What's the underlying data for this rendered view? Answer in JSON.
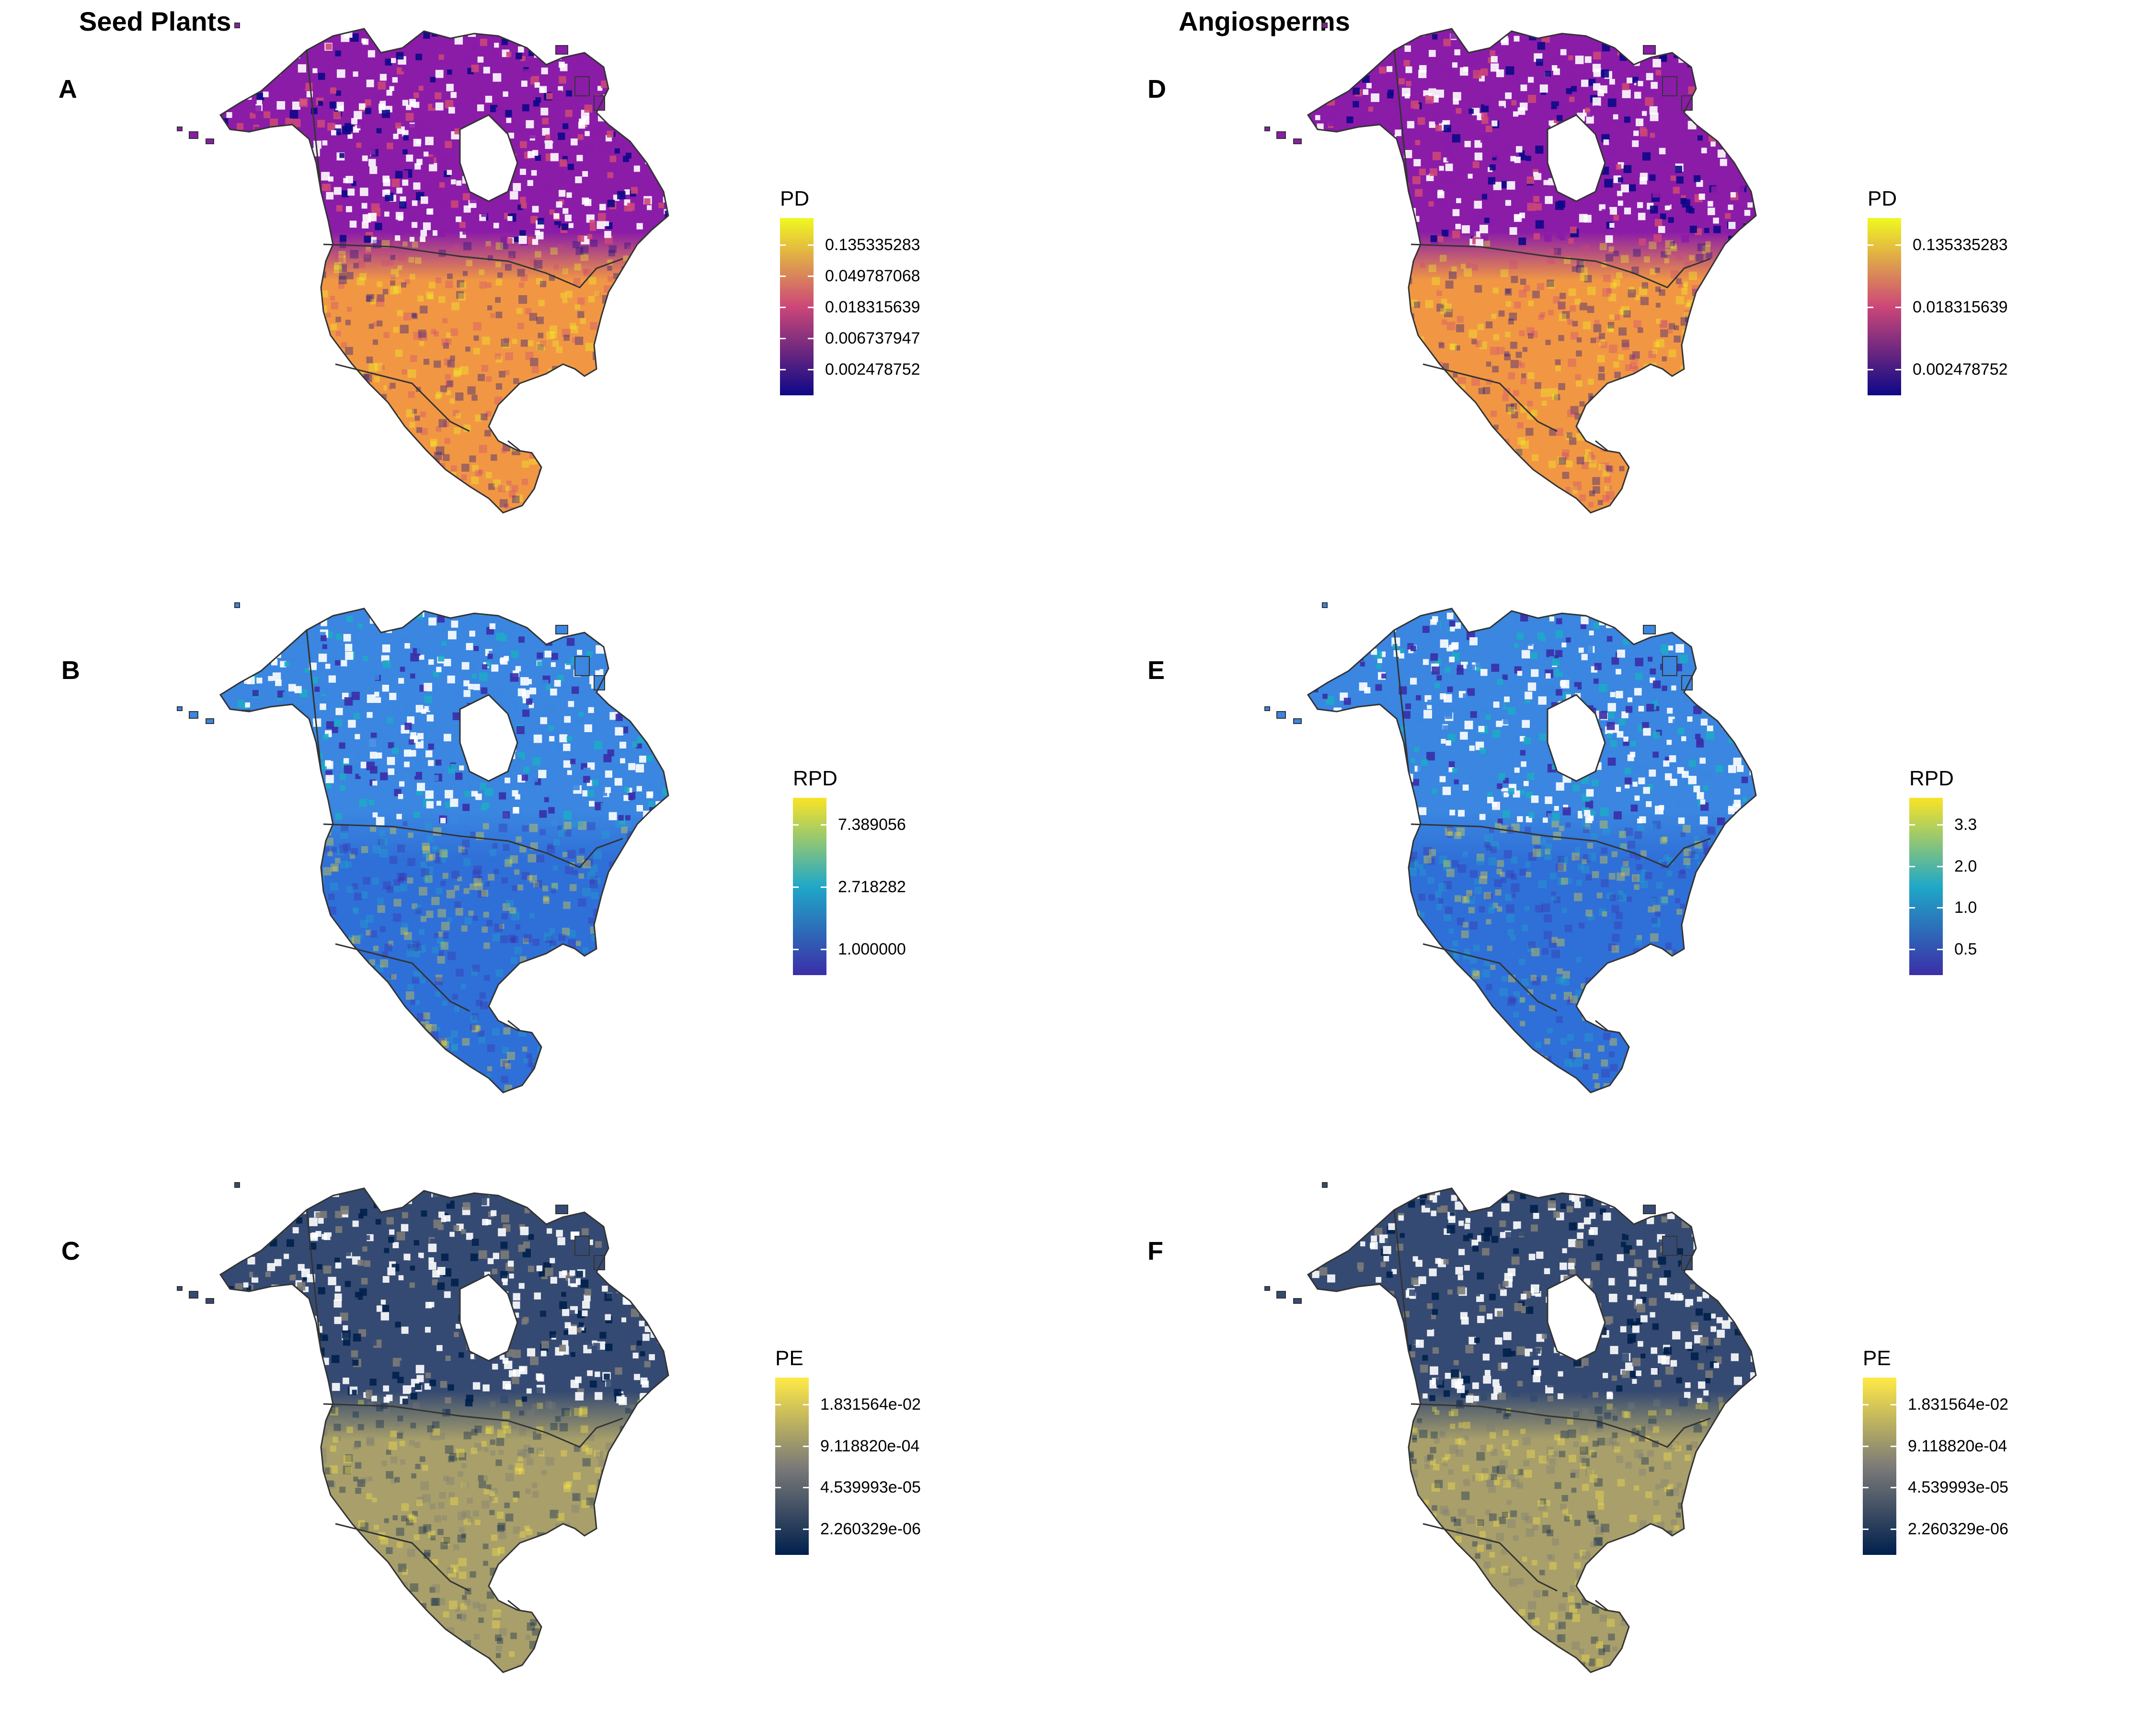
{
  "columns": [
    {
      "title": "Seed Plants"
    },
    {
      "title": "Angiosperms"
    }
  ],
  "panels": [
    {
      "id": "A",
      "label": "A",
      "legend_title": "PD",
      "palette": "plasma",
      "ticks": [
        "0.135335283",
        "0.049787068",
        "0.018315639",
        "0.006737947",
        "0.002478752"
      ]
    },
    {
      "id": "B",
      "label": "B",
      "legend_title": "RPD",
      "palette": "rpd",
      "ticks": [
        "7.389056",
        "2.718282",
        "1.000000"
      ]
    },
    {
      "id": "C",
      "label": "C",
      "legend_title": "PE",
      "palette": "cividis",
      "ticks": [
        "1.831564e-02",
        "9.118820e-04",
        "4.539993e-05",
        "2.260329e-06"
      ]
    },
    {
      "id": "D",
      "label": "D",
      "legend_title": "PD",
      "palette": "plasma",
      "ticks": [
        "0.135335283",
        "0.018315639",
        "0.002478752"
      ]
    },
    {
      "id": "E",
      "label": "E",
      "legend_title": "RPD",
      "palette": "rpd",
      "ticks": [
        "3.3",
        "2.0",
        "1.0",
        "0.5"
      ]
    },
    {
      "id": "F",
      "label": "F",
      "legend_title": "PE",
      "palette": "cividis",
      "ticks": [
        "1.831564e-02",
        "9.118820e-04",
        "4.539993e-05",
        "2.260329e-06"
      ]
    }
  ],
  "palettes": {
    "plasma": {
      "low": "#0d0887",
      "mid": "#cc4778",
      "high": "#f0f921",
      "map_fill": "#f19744",
      "north_fill": "#8a1ca8"
    },
    "rpd": {
      "low": "#3b2ea8",
      "mid": "#1fa8c8",
      "high": "#fbe326",
      "map_fill": "#2f6fd8",
      "north_fill": "#3a86e0"
    },
    "cividis": {
      "low": "#00204d",
      "mid": "#7c7b78",
      "high": "#ffea46",
      "map_fill": "#a89f6a",
      "north_fill": "#354a72"
    }
  },
  "map_style": {
    "border_color": "#333333",
    "gap_color": "#ffffff"
  }
}
